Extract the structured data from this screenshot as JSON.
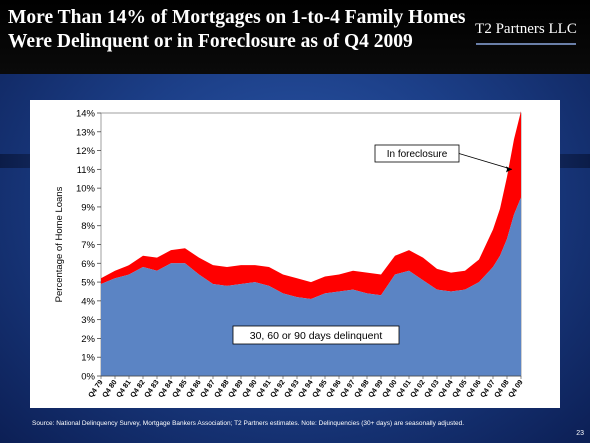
{
  "slide": {
    "title_line1": "More Than 14% of Mortgages on 1-to-4 Family Homes",
    "title_line2": "Were Delinquent or in Foreclosure as of Q4 2009",
    "logo_text": "T2 Partners LLC",
    "source": "Source: National Delinquency Survey, Mortgage Bankers Association; T2 Partners estimates. Note: Delinquencies (30+ days) are seasonally adjusted.",
    "page_number": "23"
  },
  "colors": {
    "delinquent": "#5b84c4",
    "foreclosure": "#ff0000",
    "chart_bg": "#ffffff"
  },
  "chart_data": {
    "type": "area",
    "stacked": true,
    "ylabel": "Percentage of Home Loans",
    "xlabel": "",
    "ylim": [
      0,
      14
    ],
    "yticks": [
      "0%",
      "1%",
      "2%",
      "3%",
      "4%",
      "5%",
      "6%",
      "7%",
      "8%",
      "9%",
      "10%",
      "11%",
      "12%",
      "13%",
      "14%"
    ],
    "xtick_labels": [
      "Q4 79",
      "Q4 80",
      "Q4 81",
      "Q4 82",
      "Q4 83",
      "Q4 84",
      "Q4 85",
      "Q4 86",
      "Q4 87",
      "Q4 88",
      "Q4 89",
      "Q4 90",
      "Q4 91",
      "Q4 92",
      "Q4 93",
      "Q4 94",
      "Q4 95",
      "Q4 96",
      "Q4 97",
      "Q4 98",
      "Q4 99",
      "Q4 00",
      "Q4 01",
      "Q4 02",
      "Q4 03",
      "Q4 04",
      "Q4 05",
      "Q4 06",
      "Q4 07",
      "Q4 08",
      "Q4 09"
    ],
    "x": [
      1979.75,
      1980.75,
      1981.75,
      1982.75,
      1983.75,
      1984.75,
      1985.75,
      1986.75,
      1987.75,
      1988.75,
      1989.75,
      1990.75,
      1991.75,
      1992.75,
      1993.75,
      1994.75,
      1995.75,
      1996.75,
      1997.75,
      1998.75,
      1999.75,
      2000.75,
      2001.75,
      2002.75,
      2003.75,
      2004.75,
      2005.75,
      2006.75,
      2007.75,
      2008.25,
      2008.75,
      2009.25,
      2009.75
    ],
    "series": [
      {
        "name": "30, 60 or 90 days delinquent",
        "values": [
          4.9,
          5.2,
          5.4,
          5.8,
          5.6,
          6.0,
          6.0,
          5.4,
          4.9,
          4.8,
          4.9,
          5.0,
          4.8,
          4.4,
          4.2,
          4.1,
          4.4,
          4.5,
          4.6,
          4.4,
          4.3,
          5.4,
          5.6,
          5.1,
          4.6,
          4.5,
          4.6,
          5.0,
          5.8,
          6.4,
          7.3,
          8.6,
          9.5
        ]
      },
      {
        "name": "In foreclosure",
        "values": [
          0.3,
          0.4,
          0.5,
          0.6,
          0.7,
          0.7,
          0.8,
          0.9,
          1.0,
          1.0,
          1.0,
          0.9,
          1.0,
          1.0,
          1.0,
          0.9,
          0.9,
          0.9,
          1.0,
          1.1,
          1.1,
          1.0,
          1.1,
          1.2,
          1.1,
          1.0,
          1.0,
          1.2,
          2.0,
          2.5,
          3.3,
          4.0,
          4.6
        ]
      }
    ],
    "annotations": [
      {
        "text": "In foreclosure"
      },
      {
        "text": "30, 60 or 90 days delinquent"
      }
    ]
  }
}
